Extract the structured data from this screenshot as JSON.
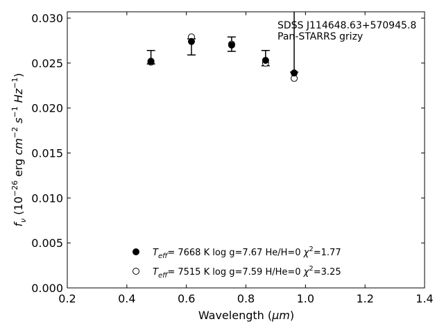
{
  "chart_data": {
    "type": "scatter",
    "xlabel_main": "Wavelength (",
    "xlabel_unit": "μm",
    "xlabel_close": ")",
    "ylabel_parts": [
      "f",
      "ν",
      " (10",
      "−26",
      " erg ",
      "cm",
      "−2",
      " s",
      "−1",
      " Hz",
      "−1",
      ")"
    ],
    "xlim": [
      0.2,
      1.4
    ],
    "ylim": [
      0.0,
      0.0307
    ],
    "xticks": [
      "0.2",
      "0.4",
      "0.6",
      "0.8",
      "1.0",
      "1.2",
      "1.4"
    ],
    "yticks": [
      "0.000",
      "0.005",
      "0.010",
      "0.015",
      "0.020",
      "0.025",
      "0.030"
    ],
    "annotation": [
      "SDSS J114648.63+570945.8",
      "Pan-STARRS grizy"
    ],
    "observed": {
      "x": [
        0.481,
        0.617,
        0.752,
        0.866,
        0.962
      ],
      "y": [
        0.0253,
        0.0275,
        0.0271,
        0.0254,
        0.024
      ],
      "yerr_low": [
        0.0249,
        0.0259,
        0.0263,
        0.0247,
        0.024
      ],
      "yerr_high": [
        0.0264,
        0.0277,
        0.0279,
        0.0264,
        0.031
      ]
    },
    "series": [
      {
        "marker": "filled",
        "teff": "7668 K",
        "logg": "log g=7.67",
        "comp": "He/H=0",
        "chi2": "=1.77",
        "x": [
          0.481,
          0.617,
          0.752,
          0.866,
          0.962
        ],
        "y": [
          0.0252,
          0.0274,
          0.027,
          0.0253,
          0.0239
        ]
      },
      {
        "marker": "open",
        "teff": "7515 K",
        "logg": "log g=7.59",
        "comp": "H/He=0",
        "chi2": "=3.25",
        "x": [
          0.481,
          0.617,
          0.752,
          0.866,
          0.962
        ],
        "y": [
          0.0251,
          0.0279,
          0.0271,
          0.025,
          0.0233
        ]
      }
    ],
    "legend_placement": "lower-center",
    "grid": false
  }
}
